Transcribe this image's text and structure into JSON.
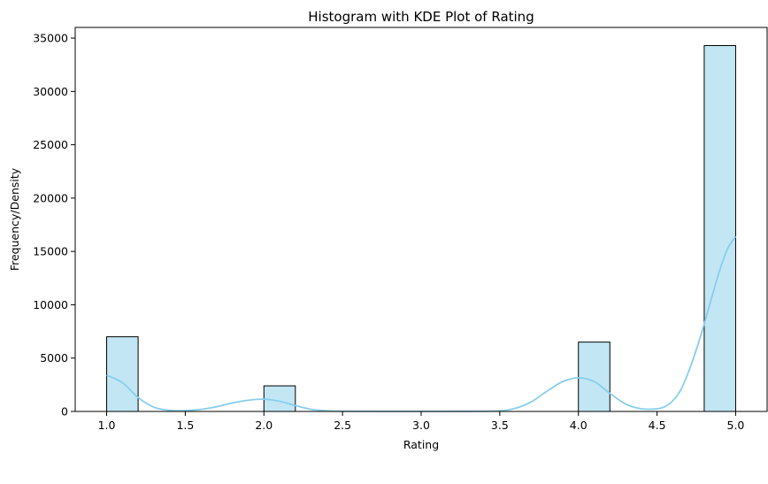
{
  "chart_data": {
    "type": "bar",
    "title": "Histogram with KDE Plot of Rating",
    "xlabel": "Rating",
    "ylabel": "Frequency/Density",
    "xlim": [
      0.8,
      5.2
    ],
    "ylim": [
      0,
      36000
    ],
    "xticks": [
      1.0,
      1.5,
      2.0,
      2.5,
      3.0,
      3.5,
      4.0,
      4.5,
      5.0
    ],
    "xtick_labels": [
      "1.0",
      "1.5",
      "2.0",
      "2.5",
      "3.0",
      "3.5",
      "4.0",
      "4.5",
      "5.0"
    ],
    "yticks": [
      0,
      5000,
      10000,
      15000,
      20000,
      25000,
      30000,
      35000
    ],
    "ytick_labels": [
      "0",
      "5000",
      "10000",
      "15000",
      "20000",
      "25000",
      "30000",
      "35000"
    ],
    "bins": [
      {
        "x0": 1.0,
        "x1": 1.2,
        "count": 7000
      },
      {
        "x0": 2.0,
        "x1": 2.2,
        "count": 2400
      },
      {
        "x0": 4.0,
        "x1": 4.2,
        "count": 6500
      },
      {
        "x0": 4.8,
        "x1": 5.0,
        "count": 34300
      }
    ],
    "kde": {
      "x": [
        1.0,
        1.1,
        1.2,
        1.3,
        1.4,
        1.5,
        1.6,
        1.7,
        1.8,
        1.9,
        2.0,
        2.1,
        2.2,
        2.3,
        2.4,
        2.5,
        2.7,
        3.0,
        3.3,
        3.5,
        3.6,
        3.7,
        3.8,
        3.9,
        4.0,
        4.1,
        4.2,
        4.3,
        4.4,
        4.5,
        4.55,
        4.6,
        4.65,
        4.7,
        4.75,
        4.8,
        4.85,
        4.9,
        4.95,
        5.0
      ],
      "y": [
        3400,
        2700,
        1300,
        400,
        100,
        80,
        200,
        450,
        800,
        1050,
        1150,
        950,
        550,
        200,
        60,
        20,
        10,
        10,
        15,
        60,
        300,
        900,
        1900,
        2800,
        3150,
        2800,
        1700,
        700,
        250,
        250,
        450,
        1000,
        2000,
        3700,
        5800,
        8200,
        10800,
        13300,
        15300,
        16400
      ]
    },
    "bar_fill": "#c2e6f4",
    "bar_edge": "#000000",
    "kde_color": "#87ceeb",
    "grid": false,
    "legend": "none"
  }
}
